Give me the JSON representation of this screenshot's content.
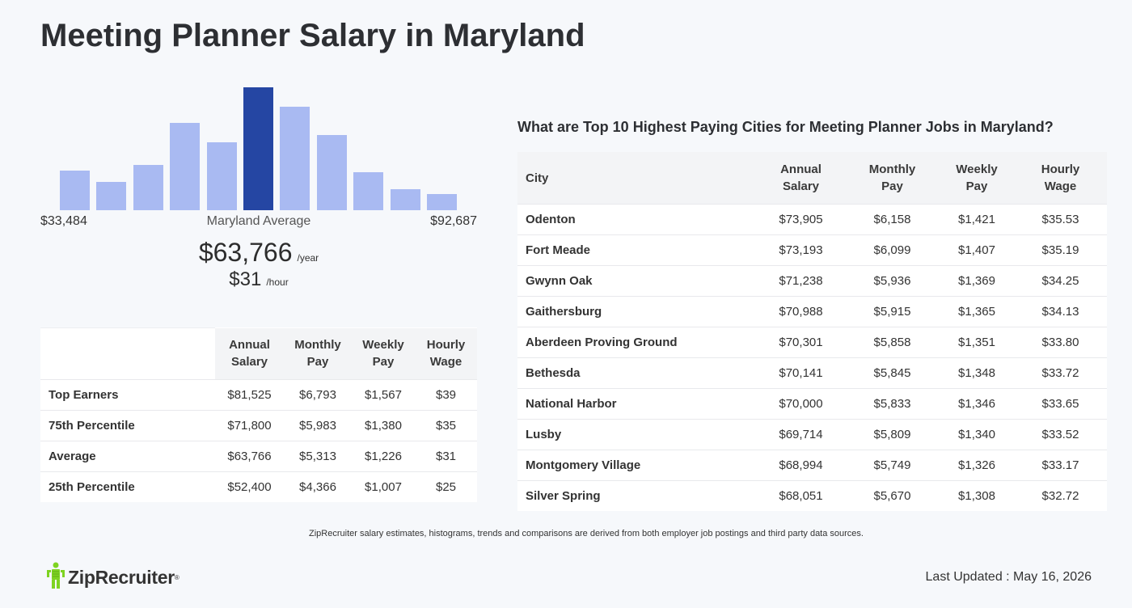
{
  "page": {
    "title": "Meeting Planner Salary in Maryland"
  },
  "histogram": {
    "min_label": "$33,484",
    "max_label": "$92,687",
    "center_label": "Maryland Average",
    "relative_heights": [
      0.32,
      0.23,
      0.37,
      0.71,
      0.55,
      1.0,
      0.84,
      0.61,
      0.31,
      0.17,
      0.13
    ],
    "highlight_index": 5,
    "colors": {
      "bar": "#a9baf2",
      "highlight": "#2546a3"
    }
  },
  "summary": {
    "annual": "$63,766",
    "annual_unit": "/year",
    "hourly": "$31",
    "hourly_unit": "/hour"
  },
  "percentile_table": {
    "headers": [
      {
        "line1": "Annual",
        "line2": "Salary"
      },
      {
        "line1": "Monthly",
        "line2": "Pay"
      },
      {
        "line1": "Weekly",
        "line2": "Pay"
      },
      {
        "line1": "Hourly",
        "line2": "Wage"
      }
    ],
    "rows": [
      {
        "label": "Top Earners",
        "annual": "$81,525",
        "monthly": "$6,793",
        "weekly": "$1,567",
        "hourly": "$39"
      },
      {
        "label": "75th Percentile",
        "annual": "$71,800",
        "monthly": "$5,983",
        "weekly": "$1,380",
        "hourly": "$35"
      },
      {
        "label": "Average",
        "annual": "$63,766",
        "monthly": "$5,313",
        "weekly": "$1,226",
        "hourly": "$31"
      },
      {
        "label": "25th Percentile",
        "annual": "$52,400",
        "monthly": "$4,366",
        "weekly": "$1,007",
        "hourly": "$25"
      }
    ]
  },
  "cities": {
    "heading": "What are Top 10 Highest Paying Cities for Meeting Planner Jobs in Maryland?",
    "headers": {
      "city": "City",
      "annual": {
        "line1": "Annual",
        "line2": "Salary"
      },
      "monthly": {
        "line1": "Monthly",
        "line2": "Pay"
      },
      "weekly": {
        "line1": "Weekly",
        "line2": "Pay"
      },
      "hourly": {
        "line1": "Hourly",
        "line2": "Wage"
      }
    },
    "rows": [
      {
        "city": "Odenton",
        "annual": "$73,905",
        "monthly": "$6,158",
        "weekly": "$1,421",
        "hourly": "$35.53"
      },
      {
        "city": "Fort Meade",
        "annual": "$73,193",
        "monthly": "$6,099",
        "weekly": "$1,407",
        "hourly": "$35.19"
      },
      {
        "city": "Gwynn Oak",
        "annual": "$71,238",
        "monthly": "$5,936",
        "weekly": "$1,369",
        "hourly": "$34.25"
      },
      {
        "city": "Gaithersburg",
        "annual": "$70,988",
        "monthly": "$5,915",
        "weekly": "$1,365",
        "hourly": "$34.13"
      },
      {
        "city": "Aberdeen Proving Ground",
        "annual": "$70,301",
        "monthly": "$5,858",
        "weekly": "$1,351",
        "hourly": "$33.80"
      },
      {
        "city": "Bethesda",
        "annual": "$70,141",
        "monthly": "$5,845",
        "weekly": "$1,348",
        "hourly": "$33.72"
      },
      {
        "city": "National Harbor",
        "annual": "$70,000",
        "monthly": "$5,833",
        "weekly": "$1,346",
        "hourly": "$33.65"
      },
      {
        "city": "Lusby",
        "annual": "$69,714",
        "monthly": "$5,809",
        "weekly": "$1,340",
        "hourly": "$33.52"
      },
      {
        "city": "Montgomery Village",
        "annual": "$68,994",
        "monthly": "$5,749",
        "weekly": "$1,326",
        "hourly": "$33.17"
      },
      {
        "city": "Silver Spring",
        "annual": "$68,051",
        "monthly": "$5,670",
        "weekly": "$1,308",
        "hourly": "$32.72"
      }
    ]
  },
  "footer": {
    "note": "ZipRecruiter salary estimates, histograms, trends and comparisons are derived from both employer job postings and third party data sources.",
    "logo_text": "ZipRecruiter",
    "logo_icon": "ziprecruiter-person-icon",
    "logo_color": "#7ed321",
    "last_updated": "Last Updated : May 16, 2026"
  }
}
